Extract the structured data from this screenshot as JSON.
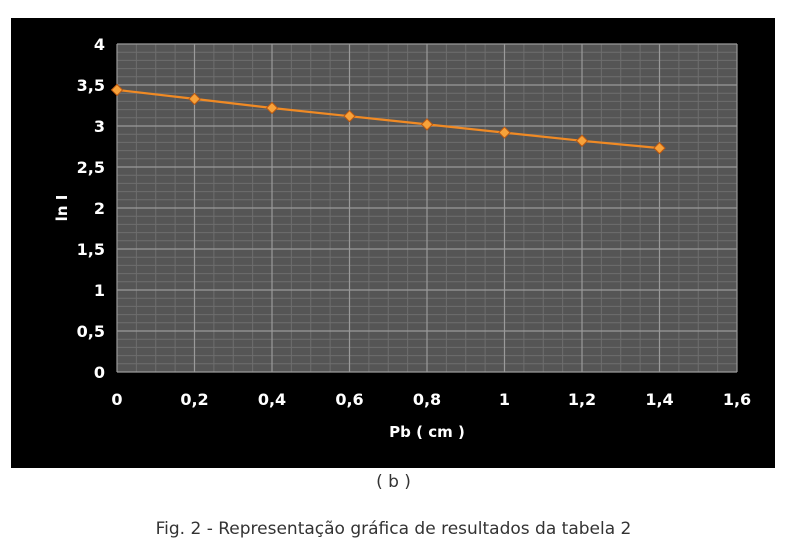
{
  "chart_data": {
    "type": "line",
    "xlabel": "Pb ( cm )",
    "ylabel": "ln I",
    "xlim": [
      0,
      1.6
    ],
    "ylim": [
      0,
      4
    ],
    "x_ticks": [
      "0",
      "0,2",
      "0,4",
      "0,6",
      "0,8",
      "1",
      "1,2",
      "1,4",
      "1,6"
    ],
    "y_ticks": [
      "0",
      "0,5",
      "1",
      "1,5",
      "2",
      "2,5",
      "3",
      "3,5",
      "4"
    ],
    "grid": true,
    "legend": "none",
    "series": [
      {
        "x": [
          0,
          0.2,
          0.4,
          0.6,
          0.8,
          1.0,
          1.2,
          1.4
        ],
        "y": [
          3.44,
          3.33,
          3.22,
          3.12,
          3.02,
          2.92,
          2.82,
          2.73
        ],
        "color": "#f08a24"
      }
    ],
    "colors": {
      "panel_bg": "#000000",
      "plot_bg": "#555555",
      "grid_major": "#9a9a9a",
      "grid_minor": "#6e6e6e",
      "marker": "#f7a23a"
    }
  },
  "panel_label": "( b )",
  "caption": "Fig. 2 - Representação gráfica de resultados da tabela 2"
}
